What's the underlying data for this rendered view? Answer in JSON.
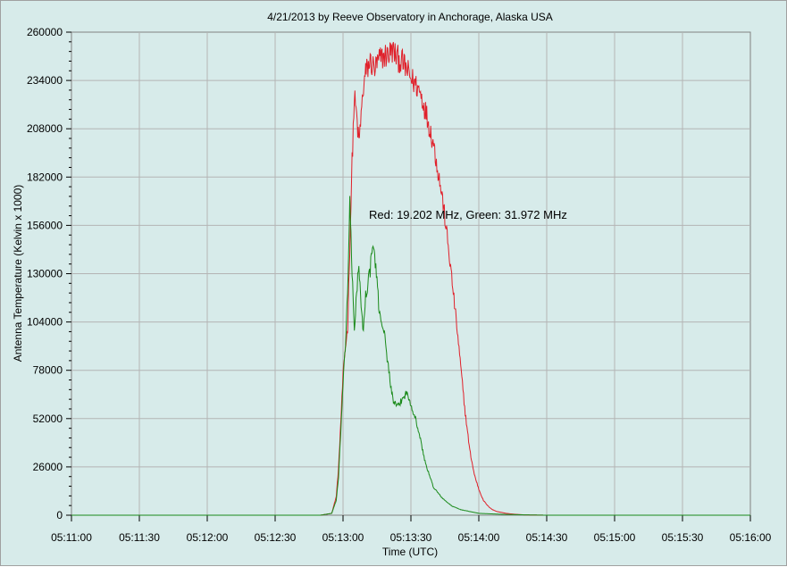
{
  "chart_data": {
    "type": "line",
    "title": "4/21/2013  by  Reeve Observatory  in  Anchorage, Alaska  USA",
    "xlabel": "Time (UTC)",
    "ylabel": "Antenna Temperature (Kelvin x 1000)",
    "annotation": "Red: 19.202 MHz, Green: 31.972 MHz",
    "xlim": [
      "05:11:00",
      "05:16:00"
    ],
    "ylim": [
      0,
      260000
    ],
    "x_tick_labels": [
      "05:11:00",
      "05:11:30",
      "05:12:00",
      "05:12:30",
      "05:13:00",
      "05:13:30",
      "05:14:00",
      "05:14:30",
      "05:15:00",
      "05:15:30",
      "05:16:00"
    ],
    "y_tick_labels": [
      "0",
      "26000",
      "52000",
      "78000",
      "104000",
      "130000",
      "156000",
      "182000",
      "208000",
      "234000",
      "260000"
    ],
    "grid": true,
    "series": [
      {
        "color": "#e0202a",
        "x": [
          "05:11:00",
          "05:12:50",
          "05:12:55",
          "05:12:57",
          "05:12:58",
          "05:12:59",
          "05:13:00",
          "05:13:01",
          "05:13:02",
          "05:13:03",
          "05:13:04",
          "05:13:05",
          "05:13:06",
          "05:13:07",
          "05:13:08",
          "05:13:09",
          "05:13:10",
          "05:13:12",
          "05:13:14",
          "05:13:16",
          "05:13:18",
          "05:13:20",
          "05:13:22",
          "05:13:24",
          "05:13:26",
          "05:13:28",
          "05:13:30",
          "05:13:32",
          "05:13:34",
          "05:13:36",
          "05:13:38",
          "05:13:40",
          "05:13:42",
          "05:13:44",
          "05:13:46",
          "05:13:48",
          "05:13:50",
          "05:13:52",
          "05:13:54",
          "05:13:56",
          "05:13:58",
          "05:14:00",
          "05:14:02",
          "05:14:04",
          "05:14:06",
          "05:14:08",
          "05:14:12",
          "05:14:16",
          "05:14:20",
          "05:14:30",
          "05:15:00",
          "05:16:00"
        ],
        "y": [
          0,
          0,
          1000,
          10000,
          25000,
          50000,
          75000,
          90000,
          100000,
          145000,
          190000,
          225000,
          215000,
          200000,
          215000,
          230000,
          238000,
          244000,
          240000,
          245000,
          247000,
          248000,
          250000,
          246000,
          244000,
          240000,
          235000,
          232000,
          228000,
          220000,
          210000,
          200000,
          185000,
          170000,
          150000,
          128000,
          105000,
          80000,
          55000,
          35000,
          22000,
          14000,
          8000,
          5000,
          3000,
          2000,
          1000,
          500,
          200,
          0,
          0,
          0
        ]
      },
      {
        "color": "#1a8a1a",
        "x": [
          "05:11:00",
          "05:12:50",
          "05:12:55",
          "05:12:57",
          "05:12:58",
          "05:12:59",
          "05:13:00",
          "05:13:01",
          "05:13:02",
          "05:13:03",
          "05:13:04",
          "05:13:05",
          "05:13:06",
          "05:13:07",
          "05:13:08",
          "05:13:09",
          "05:13:10",
          "05:13:11",
          "05:13:12",
          "05:13:13",
          "05:13:14",
          "05:13:16",
          "05:13:18",
          "05:13:20",
          "05:13:22",
          "05:13:24",
          "05:13:26",
          "05:13:28",
          "05:13:30",
          "05:13:32",
          "05:13:34",
          "05:13:36",
          "05:13:38",
          "05:13:40",
          "05:13:44",
          "05:13:48",
          "05:13:52",
          "05:14:00",
          "05:14:10",
          "05:14:20",
          "05:14:30",
          "05:15:00",
          "05:16:00"
        ],
        "y": [
          0,
          0,
          1000,
          8000,
          20000,
          45000,
          70000,
          90000,
          120000,
          168000,
          130000,
          100000,
          120000,
          135000,
          110000,
          100000,
          118000,
          125000,
          132000,
          145000,
          140000,
          110000,
          100000,
          80000,
          62000,
          58000,
          62000,
          66000,
          60000,
          52000,
          42000,
          30000,
          22000,
          15000,
          9000,
          5000,
          3000,
          1000,
          500,
          200,
          0,
          0,
          0
        ]
      }
    ]
  }
}
